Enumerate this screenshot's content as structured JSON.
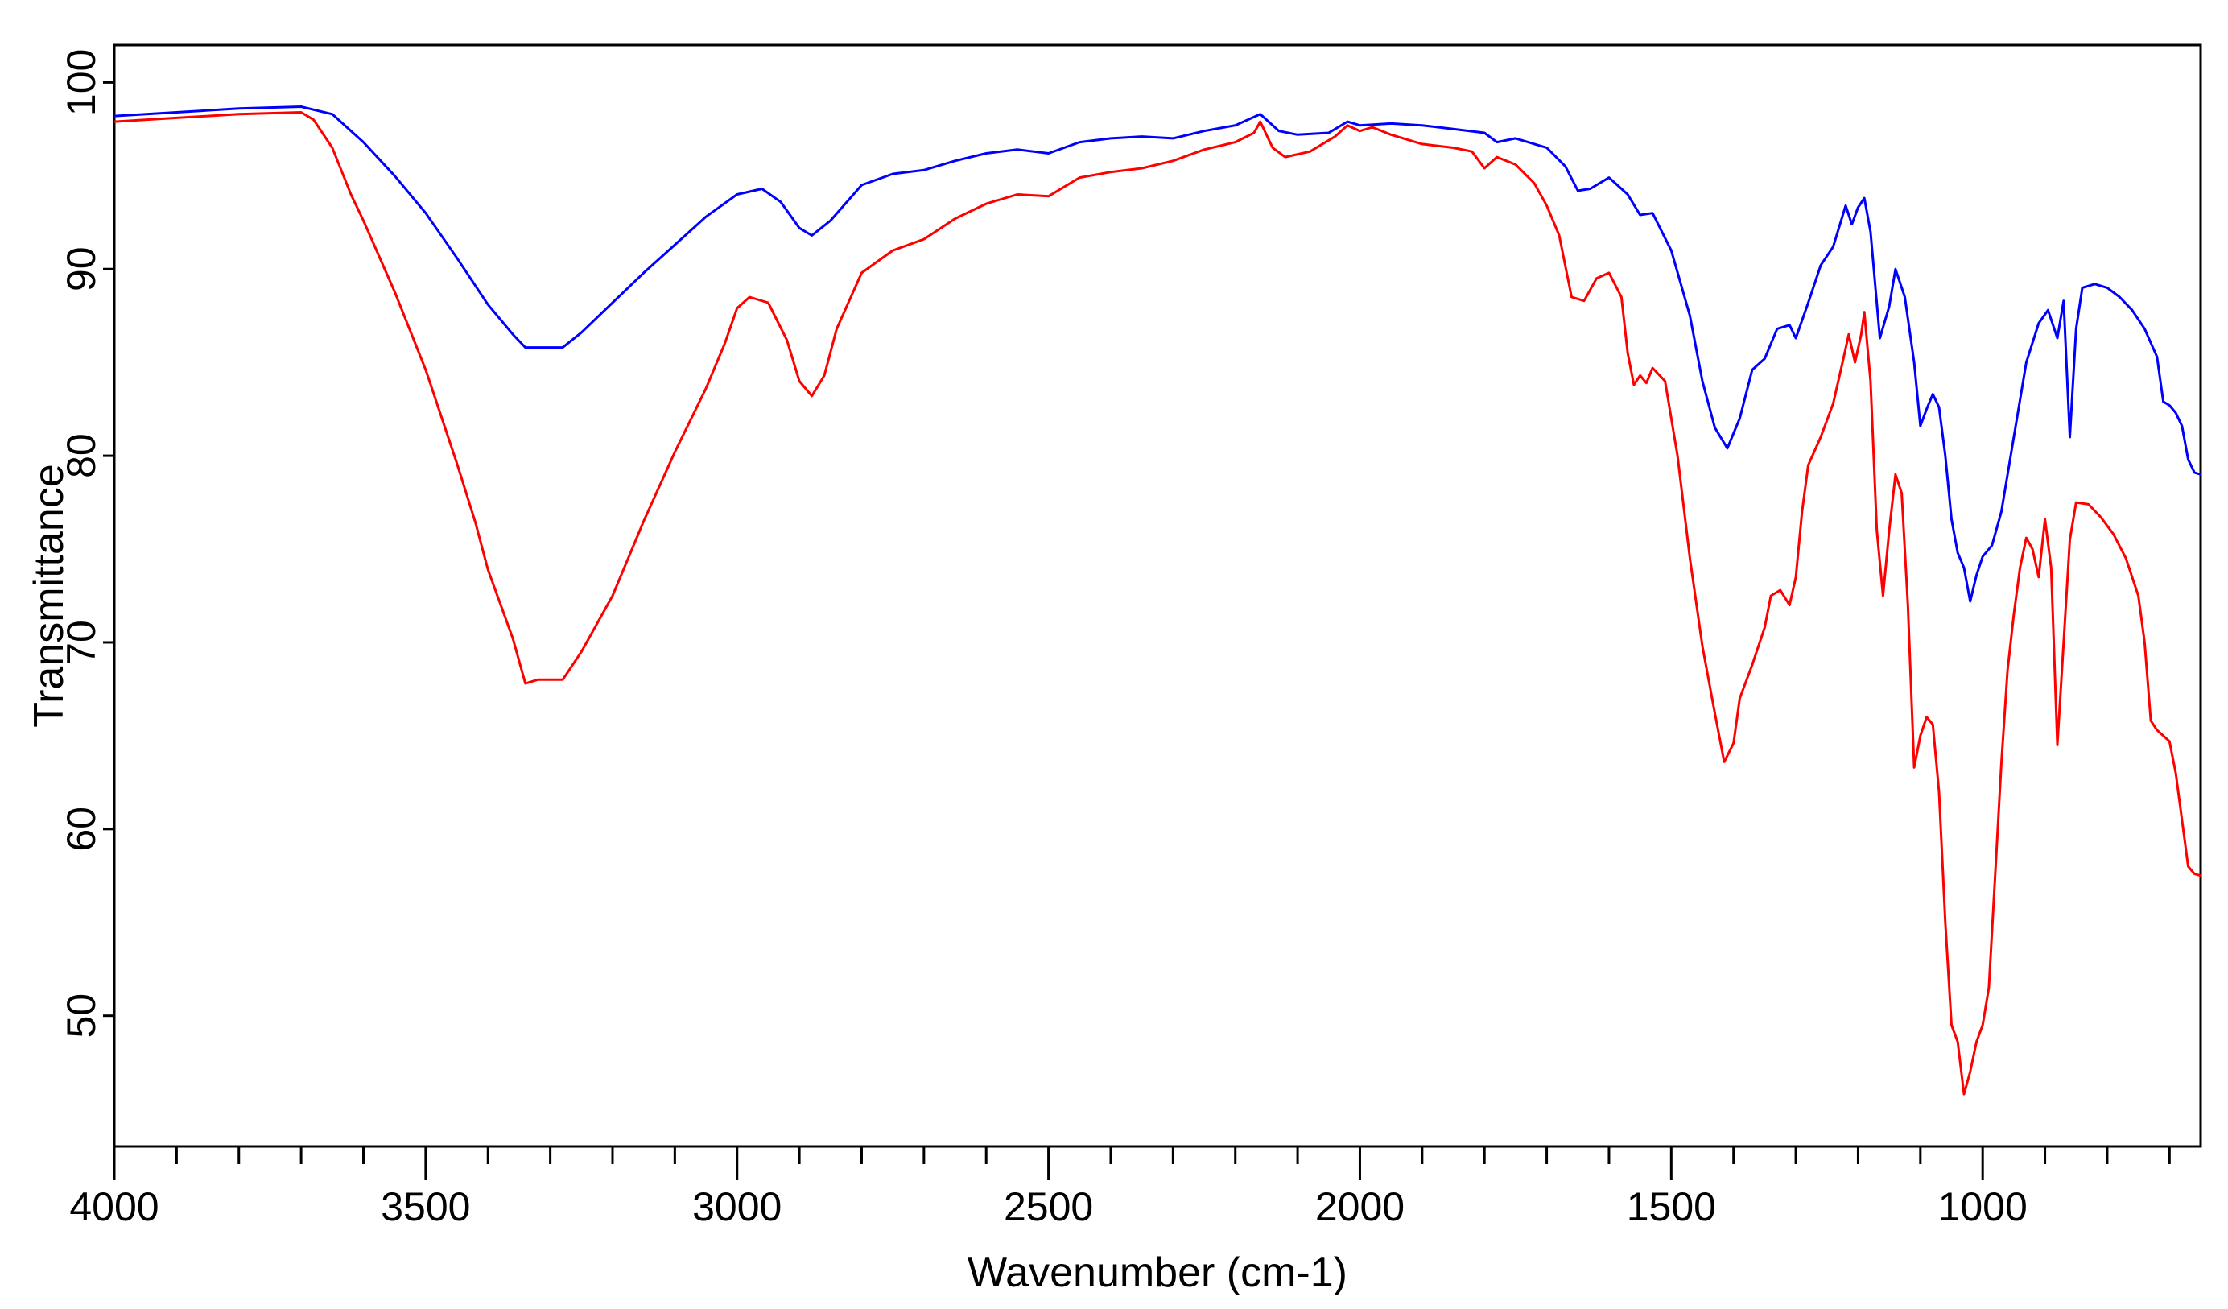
{
  "chart_data": {
    "type": "line",
    "xlabel": "Wavenumber (cm-1)",
    "ylabel": "Transmittance",
    "xlim": [
      4000,
      650
    ],
    "ylim": [
      43,
      102
    ],
    "x_reversed": true,
    "grid": false,
    "x_ticks": [
      4000,
      3500,
      3000,
      2500,
      2000,
      1500,
      1000
    ],
    "y_ticks": [
      50,
      60,
      70,
      80,
      90,
      100
    ],
    "series": [
      {
        "color": "#0000ff",
        "points": [
          [
            4000,
            98.2
          ],
          [
            3900,
            98.4
          ],
          [
            3800,
            98.6
          ],
          [
            3700,
            98.7
          ],
          [
            3650,
            98.3
          ],
          [
            3600,
            96.8
          ],
          [
            3550,
            95.0
          ],
          [
            3500,
            93.0
          ],
          [
            3450,
            90.6
          ],
          [
            3400,
            88.1
          ],
          [
            3360,
            86.5
          ],
          [
            3340,
            85.8
          ],
          [
            3310,
            85.8
          ],
          [
            3280,
            85.8
          ],
          [
            3250,
            86.6
          ],
          [
            3200,
            88.2
          ],
          [
            3150,
            89.8
          ],
          [
            3100,
            91.3
          ],
          [
            3050,
            92.8
          ],
          [
            3000,
            94.0
          ],
          [
            2960,
            94.3
          ],
          [
            2930,
            93.6
          ],
          [
            2900,
            92.2
          ],
          [
            2880,
            91.8
          ],
          [
            2850,
            92.6
          ],
          [
            2800,
            94.5
          ],
          [
            2750,
            95.1
          ],
          [
            2700,
            95.3
          ],
          [
            2650,
            95.8
          ],
          [
            2600,
            96.2
          ],
          [
            2550,
            96.4
          ],
          [
            2500,
            96.2
          ],
          [
            2450,
            96.8
          ],
          [
            2400,
            97.0
          ],
          [
            2350,
            97.1
          ],
          [
            2300,
            97.0
          ],
          [
            2250,
            97.4
          ],
          [
            2200,
            97.7
          ],
          [
            2160,
            98.3
          ],
          [
            2130,
            97.4
          ],
          [
            2100,
            97.2
          ],
          [
            2050,
            97.3
          ],
          [
            2020,
            97.9
          ],
          [
            2000,
            97.7
          ],
          [
            1950,
            97.8
          ],
          [
            1900,
            97.7
          ],
          [
            1850,
            97.5
          ],
          [
            1800,
            97.3
          ],
          [
            1780,
            96.8
          ],
          [
            1750,
            97.0
          ],
          [
            1700,
            96.5
          ],
          [
            1670,
            95.5
          ],
          [
            1650,
            94.2
          ],
          [
            1630,
            94.3
          ],
          [
            1600,
            94.9
          ],
          [
            1570,
            94.0
          ],
          [
            1550,
            92.9
          ],
          [
            1530,
            93.0
          ],
          [
            1500,
            91.0
          ],
          [
            1470,
            87.5
          ],
          [
            1450,
            84.0
          ],
          [
            1430,
            81.5
          ],
          [
            1410,
            80.4
          ],
          [
            1390,
            82.0
          ],
          [
            1370,
            84.6
          ],
          [
            1350,
            85.2
          ],
          [
            1330,
            86.8
          ],
          [
            1310,
            87.0
          ],
          [
            1300,
            86.3
          ],
          [
            1280,
            88.2
          ],
          [
            1260,
            90.2
          ],
          [
            1240,
            91.2
          ],
          [
            1220,
            93.4
          ],
          [
            1210,
            92.4
          ],
          [
            1200,
            93.3
          ],
          [
            1190,
            93.8
          ],
          [
            1180,
            92.0
          ],
          [
            1165,
            86.3
          ],
          [
            1150,
            88.0
          ],
          [
            1140,
            90.0
          ],
          [
            1125,
            88.5
          ],
          [
            1110,
            85.0
          ],
          [
            1100,
            81.6
          ],
          [
            1090,
            82.5
          ],
          [
            1080,
            83.3
          ],
          [
            1070,
            82.6
          ],
          [
            1060,
            80.0
          ],
          [
            1050,
            76.6
          ],
          [
            1040,
            74.8
          ],
          [
            1030,
            74.0
          ],
          [
            1020,
            72.2
          ],
          [
            1010,
            73.6
          ],
          [
            1000,
            74.6
          ],
          [
            985,
            75.2
          ],
          [
            970,
            77.0
          ],
          [
            950,
            81.0
          ],
          [
            930,
            85.0
          ],
          [
            910,
            87.1
          ],
          [
            895,
            87.8
          ],
          [
            880,
            86.3
          ],
          [
            870,
            88.3
          ],
          [
            860,
            81.0
          ],
          [
            850,
            86.8
          ],
          [
            840,
            89.0
          ],
          [
            820,
            89.2
          ],
          [
            800,
            89.0
          ],
          [
            780,
            88.5
          ],
          [
            760,
            87.8
          ],
          [
            740,
            86.8
          ],
          [
            720,
            85.3
          ],
          [
            710,
            82.9
          ],
          [
            700,
            82.7
          ],
          [
            690,
            82.3
          ],
          [
            680,
            81.6
          ],
          [
            670,
            79.8
          ],
          [
            660,
            79.1
          ],
          [
            650,
            79.0
          ]
        ]
      },
      {
        "color": "#ff0000",
        "points": [
          [
            4000,
            97.9
          ],
          [
            3900,
            98.1
          ],
          [
            3800,
            98.3
          ],
          [
            3700,
            98.4
          ],
          [
            3680,
            98.0
          ],
          [
            3650,
            96.5
          ],
          [
            3620,
            94.0
          ],
          [
            3600,
            92.6
          ],
          [
            3550,
            88.8
          ],
          [
            3500,
            84.6
          ],
          [
            3450,
            79.6
          ],
          [
            3420,
            76.4
          ],
          [
            3400,
            73.9
          ],
          [
            3360,
            70.2
          ],
          [
            3340,
            67.8
          ],
          [
            3320,
            68.0
          ],
          [
            3280,
            68.0
          ],
          [
            3250,
            69.5
          ],
          [
            3200,
            72.5
          ],
          [
            3150,
            76.5
          ],
          [
            3100,
            80.2
          ],
          [
            3050,
            83.6
          ],
          [
            3020,
            86.0
          ],
          [
            3000,
            87.9
          ],
          [
            2980,
            88.5
          ],
          [
            2950,
            88.2
          ],
          [
            2920,
            86.2
          ],
          [
            2900,
            84.0
          ],
          [
            2880,
            83.2
          ],
          [
            2860,
            84.3
          ],
          [
            2840,
            86.8
          ],
          [
            2800,
            89.8
          ],
          [
            2750,
            91.0
          ],
          [
            2700,
            91.6
          ],
          [
            2650,
            92.7
          ],
          [
            2600,
            93.5
          ],
          [
            2550,
            94.0
          ],
          [
            2500,
            93.9
          ],
          [
            2450,
            94.9
          ],
          [
            2400,
            95.2
          ],
          [
            2350,
            95.4
          ],
          [
            2300,
            95.8
          ],
          [
            2250,
            96.4
          ],
          [
            2200,
            96.8
          ],
          [
            2170,
            97.3
          ],
          [
            2160,
            97.9
          ],
          [
            2140,
            96.5
          ],
          [
            2120,
            96.0
          ],
          [
            2080,
            96.3
          ],
          [
            2040,
            97.1
          ],
          [
            2020,
            97.7
          ],
          [
            2000,
            97.4
          ],
          [
            1980,
            97.6
          ],
          [
            1950,
            97.2
          ],
          [
            1900,
            96.7
          ],
          [
            1850,
            96.5
          ],
          [
            1820,
            96.3
          ],
          [
            1800,
            95.4
          ],
          [
            1780,
            96.0
          ],
          [
            1750,
            95.6
          ],
          [
            1720,
            94.6
          ],
          [
            1700,
            93.4
          ],
          [
            1680,
            91.8
          ],
          [
            1660,
            88.5
          ],
          [
            1640,
            88.3
          ],
          [
            1620,
            89.5
          ],
          [
            1600,
            89.8
          ],
          [
            1580,
            88.5
          ],
          [
            1570,
            85.5
          ],
          [
            1560,
            83.8
          ],
          [
            1550,
            84.3
          ],
          [
            1540,
            83.9
          ],
          [
            1530,
            84.7
          ],
          [
            1510,
            84.0
          ],
          [
            1490,
            80.0
          ],
          [
            1470,
            74.5
          ],
          [
            1450,
            69.8
          ],
          [
            1430,
            66.2
          ],
          [
            1415,
            63.6
          ],
          [
            1400,
            64.6
          ],
          [
            1390,
            67.0
          ],
          [
            1370,
            68.8
          ],
          [
            1350,
            70.8
          ],
          [
            1340,
            72.5
          ],
          [
            1325,
            72.8
          ],
          [
            1310,
            72.0
          ],
          [
            1300,
            73.5
          ],
          [
            1290,
            77.0
          ],
          [
            1280,
            79.5
          ],
          [
            1260,
            81.0
          ],
          [
            1240,
            82.8
          ],
          [
            1225,
            85.0
          ],
          [
            1215,
            86.5
          ],
          [
            1205,
            85.0
          ],
          [
            1195,
            86.5
          ],
          [
            1190,
            87.7
          ],
          [
            1180,
            84.0
          ],
          [
            1170,
            76.0
          ],
          [
            1160,
            72.5
          ],
          [
            1150,
            76.0
          ],
          [
            1140,
            79.0
          ],
          [
            1130,
            78.0
          ],
          [
            1120,
            72.0
          ],
          [
            1110,
            63.3
          ],
          [
            1100,
            65.0
          ],
          [
            1090,
            66.0
          ],
          [
            1080,
            65.6
          ],
          [
            1070,
            62.0
          ],
          [
            1060,
            55.0
          ],
          [
            1050,
            49.5
          ],
          [
            1040,
            48.6
          ],
          [
            1030,
            45.8
          ],
          [
            1020,
            47.0
          ],
          [
            1010,
            48.6
          ],
          [
            1000,
            49.5
          ],
          [
            990,
            51.5
          ],
          [
            980,
            57.5
          ],
          [
            970,
            63.5
          ],
          [
            960,
            68.5
          ],
          [
            950,
            71.5
          ],
          [
            940,
            74.0
          ],
          [
            930,
            75.6
          ],
          [
            920,
            75.0
          ],
          [
            910,
            73.5
          ],
          [
            900,
            76.6
          ],
          [
            890,
            74.0
          ],
          [
            880,
            64.5
          ],
          [
            870,
            70.0
          ],
          [
            860,
            75.5
          ],
          [
            850,
            77.5
          ],
          [
            830,
            77.4
          ],
          [
            810,
            76.7
          ],
          [
            790,
            75.8
          ],
          [
            770,
            74.5
          ],
          [
            750,
            72.5
          ],
          [
            740,
            70.0
          ],
          [
            730,
            65.8
          ],
          [
            720,
            65.3
          ],
          [
            700,
            64.7
          ],
          [
            690,
            63.0
          ],
          [
            680,
            60.5
          ],
          [
            670,
            58.0
          ],
          [
            660,
            57.6
          ],
          [
            650,
            57.5
          ]
        ]
      }
    ]
  }
}
